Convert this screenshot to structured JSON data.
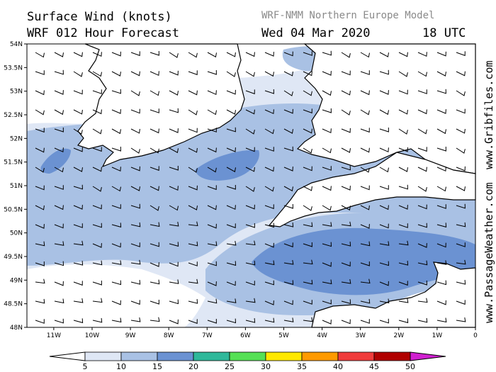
{
  "header": {
    "title": "Surface Wind (knots)",
    "forecast": "WRF 012 Hour Forecast",
    "model": "WRF-NMM Northern Europe Model",
    "date": "Wed 04 Mar 2020",
    "time": "18 UTC"
  },
  "credits": {
    "site1": "www.Gribfiles.com",
    "site2": "www.PassageWeather.com"
  },
  "map": {
    "lat_labels": [
      "54N",
      "53.5N",
      "53N",
      "52.5N",
      "52N",
      "51.5N",
      "51N",
      "50.5N",
      "50N",
      "49.5N",
      "49N",
      "48.5N",
      "48N"
    ],
    "lon_labels": [
      "11W",
      "10W",
      "9W",
      "8W",
      "7W",
      "6W",
      "5W",
      "4W",
      "3W",
      "2W",
      "1W",
      "0"
    ],
    "lat_range": [
      48,
      54
    ],
    "lon_range": [
      -11.7,
      0
    ],
    "colors": {
      "land": "#ffffff",
      "coast": "#000000",
      "band_5_10": "#dfe7f5",
      "band_10_15": "#a9c1e4",
      "band_15_20": "#6b92d2"
    }
  },
  "legend": {
    "labels": [
      "5",
      "10",
      "15",
      "20",
      "25",
      "30",
      "35",
      "40",
      "45",
      "50"
    ],
    "colors": [
      "#ffffff",
      "#dfe7f5",
      "#a9c1e4",
      "#6b92d2",
      "#2fb89a",
      "#55e055",
      "#ffe800",
      "#ff9a00",
      "#f03c3c",
      "#b00000",
      "#d020d0"
    ]
  }
}
